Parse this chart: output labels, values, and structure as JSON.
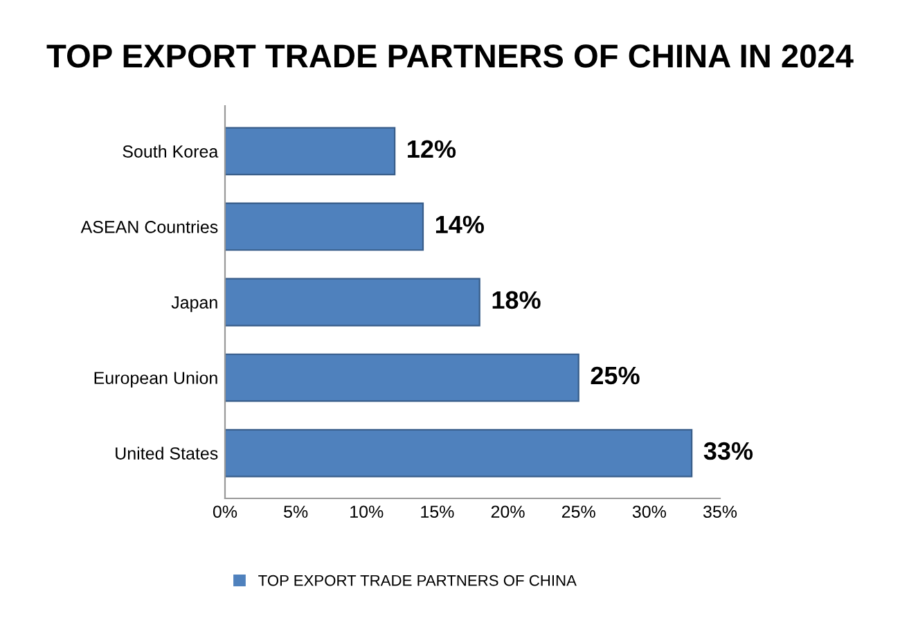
{
  "chart_data": {
    "type": "bar",
    "orientation": "horizontal",
    "title": "TOP EXPORT TRADE PARTNERS OF CHINA IN 2024",
    "categories": [
      "South Korea",
      "ASEAN Countries",
      "Japan",
      "European Union",
      "United States"
    ],
    "series": [
      {
        "name": "TOP EXPORT TRADE PARTNERS OF CHINA",
        "color": "#4f81bd",
        "values": [
          12,
          14,
          18,
          25,
          33
        ],
        "value_labels": [
          "12%",
          "14%",
          "18%",
          "25%",
          "33%"
        ]
      }
    ],
    "xlim": [
      0,
      35
    ],
    "xticks": [
      {
        "value": 0,
        "label": "0%"
      },
      {
        "value": 5,
        "label": "5%"
      },
      {
        "value": 10,
        "label": "10%"
      },
      {
        "value": 15,
        "label": "15%"
      },
      {
        "value": 20,
        "label": "20%"
      },
      {
        "value": 25,
        "label": "25%"
      },
      {
        "value": 30,
        "label": "30%"
      },
      {
        "value": 35,
        "label": "35%"
      }
    ],
    "grid": false,
    "legend": "bottom"
  }
}
